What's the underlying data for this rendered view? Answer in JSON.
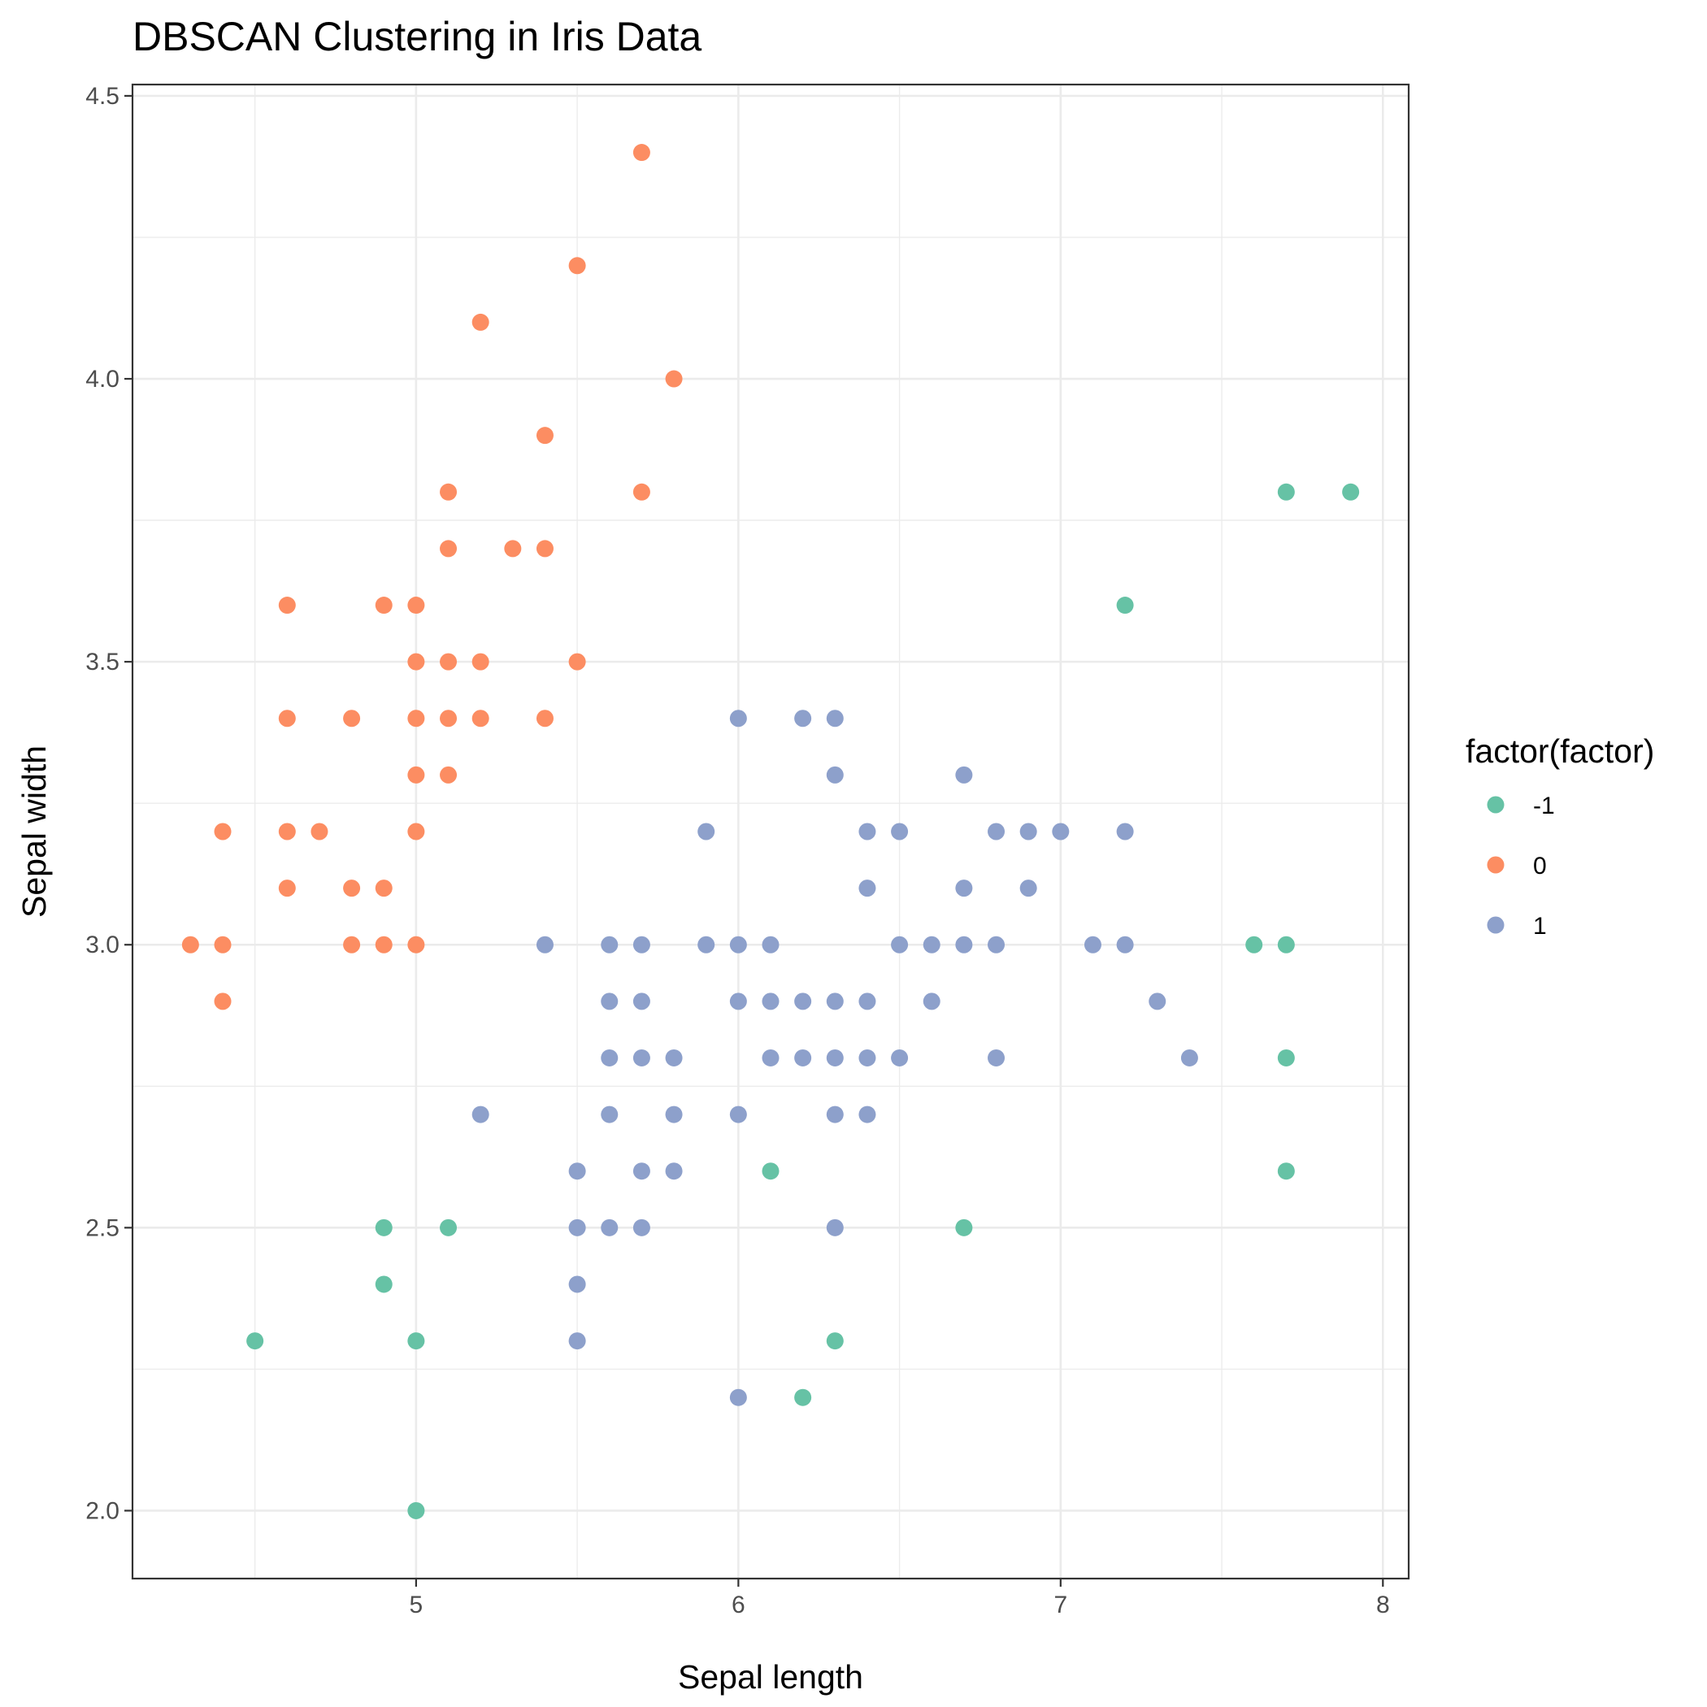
{
  "chart_data": {
    "type": "scatter",
    "title": "DBSCAN Clustering in Iris Data",
    "xlabel": "Sepal length",
    "ylabel": "Sepal width",
    "xlim": [
      4.12,
      8.08
    ],
    "ylim": [
      1.88,
      4.52
    ],
    "x_ticks": [
      5,
      6,
      7,
      8
    ],
    "x_tick_labels": [
      "5",
      "6",
      "7",
      "8"
    ],
    "y_ticks": [
      2.0,
      2.5,
      3.0,
      3.5,
      4.0,
      4.5
    ],
    "y_tick_labels": [
      "2.0",
      "2.5",
      "3.0",
      "3.5",
      "4.0",
      "4.5"
    ],
    "grid": true,
    "legend": {
      "title": "factor(factor)",
      "position": "right"
    },
    "series": [
      {
        "name": "-1",
        "color": "#66c2a5",
        "points": [
          [
            4.5,
            2.3
          ],
          [
            4.9,
            2.5
          ],
          [
            4.9,
            2.4
          ],
          [
            5.0,
            2.3
          ],
          [
            5.0,
            2.0
          ],
          [
            5.1,
            2.5
          ],
          [
            6.1,
            2.6
          ],
          [
            6.2,
            2.2
          ],
          [
            6.3,
            2.3
          ],
          [
            6.7,
            2.5
          ],
          [
            7.2,
            3.6
          ],
          [
            7.6,
            3.0
          ],
          [
            7.7,
            3.8
          ],
          [
            7.7,
            3.0
          ],
          [
            7.7,
            2.8
          ],
          [
            7.7,
            2.6
          ],
          [
            7.9,
            3.8
          ]
        ]
      },
      {
        "name": "0",
        "color": "#fc8d62",
        "points": [
          [
            4.3,
            3.0
          ],
          [
            4.4,
            3.2
          ],
          [
            4.4,
            3.0
          ],
          [
            4.4,
            2.9
          ],
          [
            4.6,
            3.6
          ],
          [
            4.6,
            3.4
          ],
          [
            4.6,
            3.2
          ],
          [
            4.6,
            3.1
          ],
          [
            4.7,
            3.2
          ],
          [
            4.8,
            3.4
          ],
          [
            4.8,
            3.1
          ],
          [
            4.8,
            3.0
          ],
          [
            4.9,
            3.6
          ],
          [
            4.9,
            3.1
          ],
          [
            4.9,
            3.0
          ],
          [
            5.0,
            3.6
          ],
          [
            5.0,
            3.5
          ],
          [
            5.0,
            3.4
          ],
          [
            5.0,
            3.3
          ],
          [
            5.0,
            3.2
          ],
          [
            5.0,
            3.0
          ],
          [
            5.1,
            3.8
          ],
          [
            5.1,
            3.7
          ],
          [
            5.1,
            3.5
          ],
          [
            5.1,
            3.4
          ],
          [
            5.1,
            3.3
          ],
          [
            5.2,
            4.1
          ],
          [
            5.2,
            3.5
          ],
          [
            5.2,
            3.4
          ],
          [
            5.3,
            3.7
          ],
          [
            5.4,
            3.9
          ],
          [
            5.4,
            3.7
          ],
          [
            5.4,
            3.4
          ],
          [
            5.5,
            4.2
          ],
          [
            5.5,
            3.5
          ],
          [
            5.7,
            4.4
          ],
          [
            5.7,
            3.8
          ],
          [
            5.8,
            4.0
          ]
        ]
      },
      {
        "name": "1",
        "color": "#8da0cb",
        "points": [
          [
            5.2,
            2.7
          ],
          [
            5.4,
            3.0
          ],
          [
            5.5,
            2.6
          ],
          [
            5.5,
            2.5
          ],
          [
            5.5,
            2.4
          ],
          [
            5.5,
            2.3
          ],
          [
            5.6,
            3.0
          ],
          [
            5.6,
            2.9
          ],
          [
            5.6,
            2.8
          ],
          [
            5.6,
            2.7
          ],
          [
            5.6,
            2.5
          ],
          [
            5.7,
            3.0
          ],
          [
            5.7,
            2.9
          ],
          [
            5.7,
            2.8
          ],
          [
            5.7,
            2.6
          ],
          [
            5.7,
            2.5
          ],
          [
            5.8,
            2.8
          ],
          [
            5.8,
            2.7
          ],
          [
            5.8,
            2.6
          ],
          [
            5.9,
            3.2
          ],
          [
            5.9,
            3.0
          ],
          [
            6.0,
            3.4
          ],
          [
            6.0,
            3.0
          ],
          [
            6.0,
            2.9
          ],
          [
            6.0,
            2.7
          ],
          [
            6.0,
            2.2
          ],
          [
            6.1,
            3.0
          ],
          [
            6.1,
            2.9
          ],
          [
            6.1,
            2.8
          ],
          [
            6.2,
            3.4
          ],
          [
            6.2,
            2.9
          ],
          [
            6.2,
            2.8
          ],
          [
            6.3,
            3.4
          ],
          [
            6.3,
            3.3
          ],
          [
            6.3,
            2.9
          ],
          [
            6.3,
            2.8
          ],
          [
            6.3,
            2.7
          ],
          [
            6.3,
            2.5
          ],
          [
            6.4,
            3.2
          ],
          [
            6.4,
            3.1
          ],
          [
            6.4,
            2.9
          ],
          [
            6.4,
            2.8
          ],
          [
            6.4,
            2.7
          ],
          [
            6.5,
            3.2
          ],
          [
            6.5,
            3.0
          ],
          [
            6.5,
            2.8
          ],
          [
            6.6,
            3.0
          ],
          [
            6.6,
            2.9
          ],
          [
            6.7,
            3.3
          ],
          [
            6.7,
            3.1
          ],
          [
            6.7,
            3.0
          ],
          [
            6.8,
            3.2
          ],
          [
            6.8,
            3.0
          ],
          [
            6.8,
            2.8
          ],
          [
            6.9,
            3.2
          ],
          [
            6.9,
            3.1
          ],
          [
            7.0,
            3.2
          ],
          [
            7.1,
            3.0
          ],
          [
            7.2,
            3.2
          ],
          [
            7.2,
            3.0
          ],
          [
            7.3,
            2.9
          ],
          [
            7.4,
            2.8
          ]
        ]
      }
    ]
  }
}
